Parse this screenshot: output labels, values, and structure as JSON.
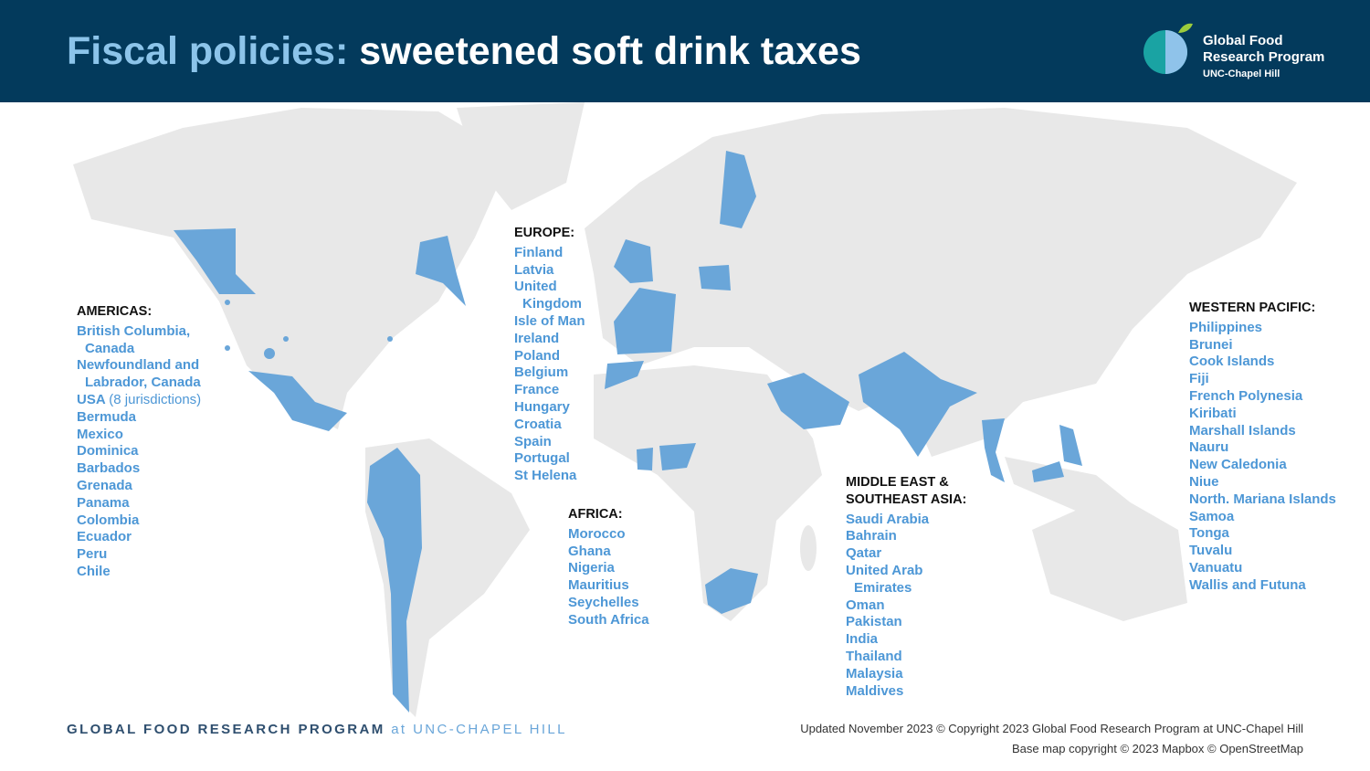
{
  "header": {
    "title_lead": "Fiscal policies:",
    "title_rest": "sweetened soft drink taxes",
    "logo": [
      "Global Food",
      "Research Program",
      "UNC-Chapel Hill"
    ]
  },
  "regions": [
    {
      "heading": "AMERICAS:",
      "items": [
        "British Columbia, Canada",
        "Newfoundland and Labrador, Canada",
        {
          "name": "USA",
          "note": "(8 jurisdictions)"
        },
        "Bermuda",
        "Mexico",
        "Dominica",
        "Barbados",
        "Grenada",
        "Panama",
        "Colombia",
        "Ecuador",
        "Peru",
        "Chile"
      ]
    },
    {
      "heading": "EUROPE:",
      "items": [
        "Finland",
        "Latvia",
        "United Kingdom",
        "Isle of Man",
        "Ireland",
        "Poland",
        "Belgium",
        "France",
        "Hungary",
        "Croatia",
        "Spain",
        "Portugal",
        "St Helena"
      ]
    },
    {
      "heading": "AFRICA:",
      "items": [
        "Morocco",
        "Ghana",
        "Nigeria",
        "Mauritius",
        "Seychelles",
        "South Africa"
      ]
    },
    {
      "heading": "MIDDLE EAST & SOUTHEAST ASIA:",
      "items": [
        "Saudi Arabia",
        "Bahrain",
        "Qatar",
        "United Arab Emirates",
        "Oman",
        "Pakistan",
        "India",
        "Thailand",
        "Malaysia",
        "Maldives"
      ]
    },
    {
      "heading": "WESTERN PACIFIC:",
      "items": [
        "Philippines",
        "Brunei",
        "Cook Islands",
        "Fiji",
        "French Polynesia",
        "Kiribati",
        "Marshall Islands",
        "Nauru",
        "New Caledonia",
        "Niue",
        "North. Mariana Islands",
        "Samoa",
        "Tonga",
        "Tuvalu",
        "Vanuatu",
        "Wallis and Futuna"
      ]
    }
  ],
  "footer": {
    "org": "GLOBAL FOOD RESEARCH PROGRAM",
    "at": "at",
    "place": "UNC-CHAPEL HILL",
    "updated": "Updated November 2023 © Copyright 2023 Global Food Research Program at UNC-Chapel Hill",
    "basemap": "Base map copyright © 2023 Mapbox © OpenStreetMap"
  }
}
